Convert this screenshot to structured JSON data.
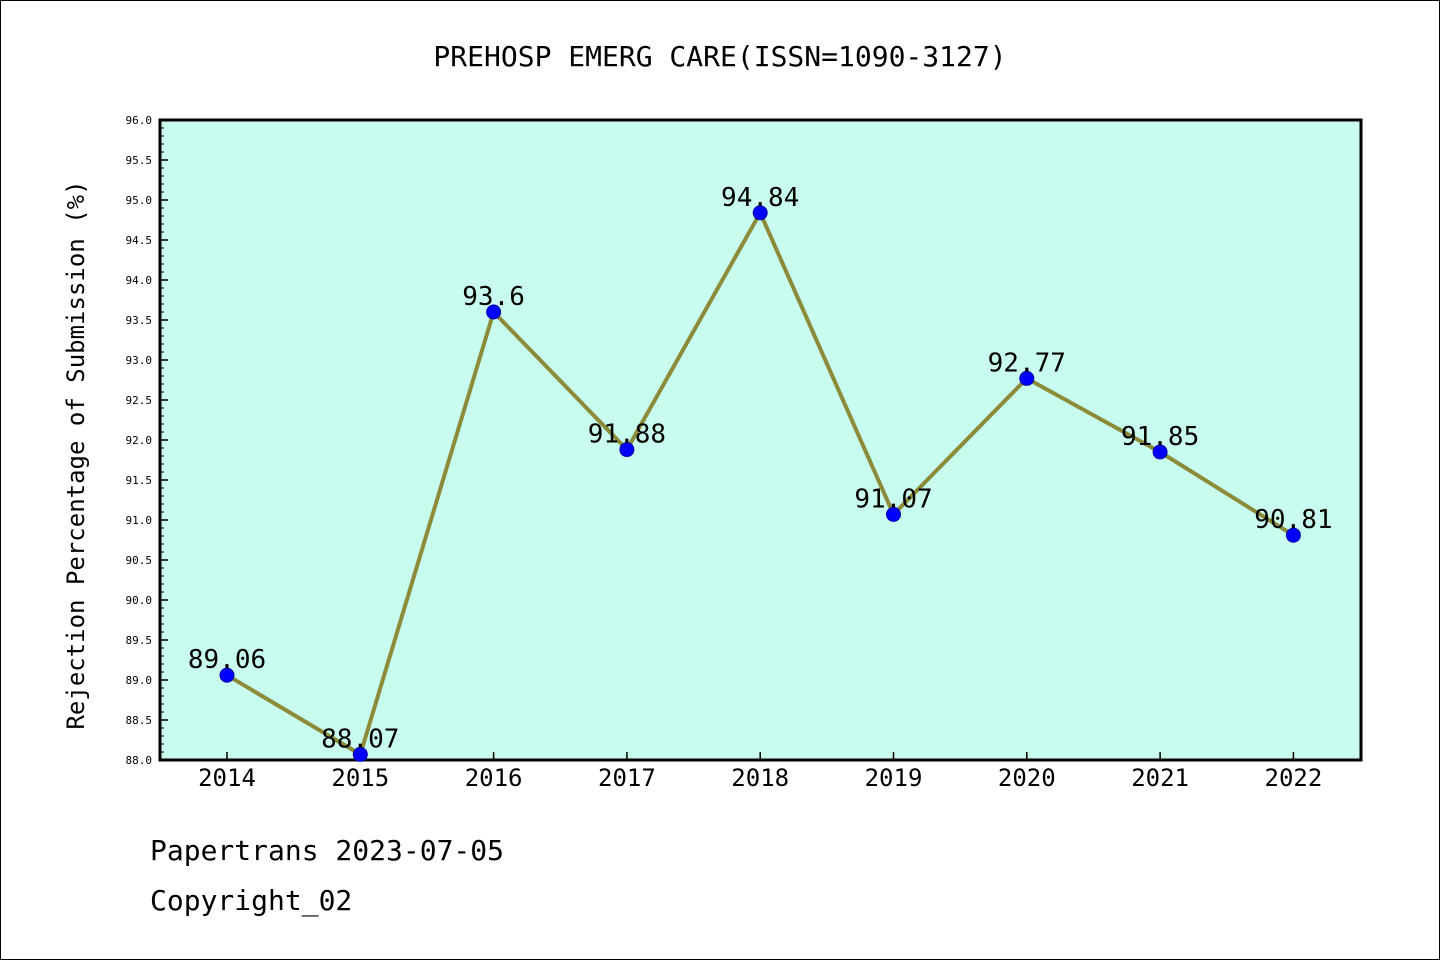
{
  "chart_data": {
    "type": "line",
    "title": "PREHOSP EMERG CARE(ISSN=1090-3127)",
    "xlabel": "",
    "ylabel": "Rejection Percentage of Submission (%)",
    "categories": [
      "2014",
      "2015",
      "2016",
      "2017",
      "2018",
      "2019",
      "2020",
      "2021",
      "2022"
    ],
    "values": [
      89.06,
      88.07,
      93.6,
      91.88,
      94.84,
      91.07,
      92.77,
      91.85,
      90.81
    ],
    "data_labels": [
      "89.06",
      "88.07",
      "93.6",
      "91.88",
      "94.84",
      "91.07",
      "92.77",
      "91.85",
      "90.81"
    ],
    "ylim": [
      88.0,
      96.0
    ],
    "y_ticks": [
      "88.0",
      "88.5",
      "89.0",
      "89.5",
      "90.0",
      "90.5",
      "91.0",
      "91.5",
      "92.0",
      "92.5",
      "93.0",
      "93.5",
      "94.0",
      "94.5",
      "95.0",
      "95.5",
      "96.0"
    ],
    "grid": false,
    "colors": {
      "plot_background": "#c8fcee",
      "line": "#8b8b3a",
      "marker": "#0000ff"
    }
  },
  "footer": {
    "source": "Papertrans 2023-07-05",
    "copyright": "Copyright_02"
  }
}
